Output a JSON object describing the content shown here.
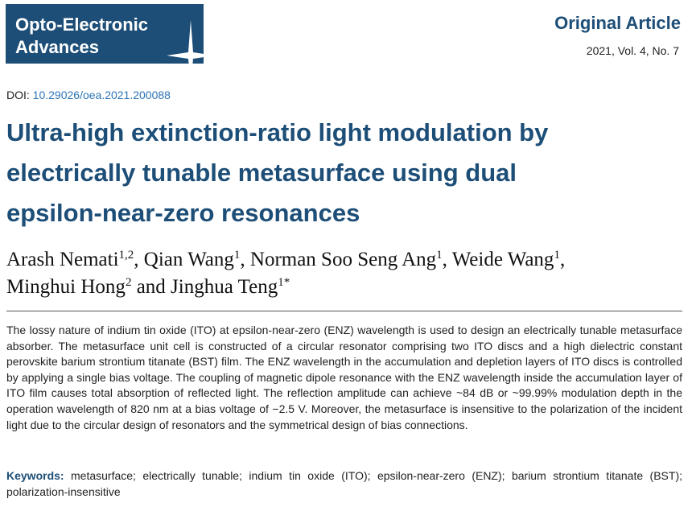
{
  "journal": {
    "name_lines": [
      "Opto-Electronic",
      "Advances"
    ]
  },
  "article_type": "Original Article",
  "issue": "2021, Vol. 4, No. 7",
  "doi": {
    "label": "DOI:",
    "value": "10.29026/oea.2021.200088"
  },
  "title_lines": [
    "Ultra-high extinction-ratio light modulation by",
    "electrically tunable metasurface using dual",
    "epsilon-near-zero resonances"
  ],
  "author_lines": [
    [
      {
        "name": "Arash Nemati",
        "sup": "1,2",
        "sep": ", "
      },
      {
        "name": "Qian Wang",
        "sup": "1",
        "sep": ", "
      },
      {
        "name": "Norman Soo Seng Ang",
        "sup": "1",
        "sep": ", "
      },
      {
        "name": "Weide Wang",
        "sup": "1",
        "sep": ","
      }
    ],
    [
      {
        "name": "Minghui Hong",
        "sup": "2",
        "sep": " and "
      },
      {
        "name": "Jinghua Teng",
        "sup": "1*",
        "sep": ""
      }
    ]
  ],
  "abstract": "The lossy nature of indium tin oxide (ITO) at epsilon-near-zero (ENZ) wavelength is used to design an electrically tunable metasurface absorber. The metasurface unit cell is constructed of a circular resonator comprising two ITO discs and a high dielectric constant perovskite barium strontium titanate (BST) film. The ENZ wavelength in the accumulation and depletion layers of ITO discs is controlled by applying a single bias voltage. The coupling of magnetic dipole resonance with the ENZ wavelength inside the accumulation layer of ITO film causes total absorption of reflected light. The reflection amplitude can achieve ~84 dB or ~99.99% modulation depth in the operation wavelength of 820 nm at a bias voltage of −2.5 V. Moreover, the metasurface is insensitive to the polarization of the incident light due to the circular design of resonators and the symmetrical design of bias connections.",
  "keywords": {
    "label": "Keywords:",
    "text": "metasurface; electrically tunable; indium tin oxide (ITO); epsilon-near-zero (ENZ); barium strontium titanate (BST); polarization-insensitive"
  }
}
